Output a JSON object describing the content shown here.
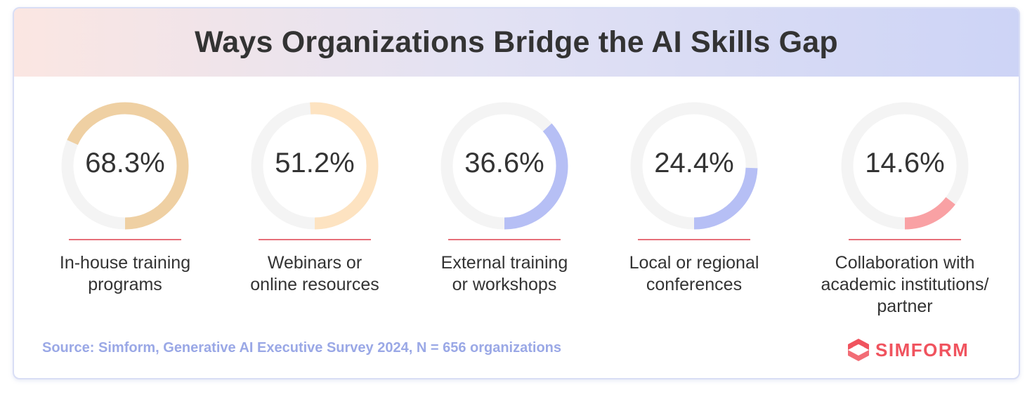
{
  "header": {
    "title": "Ways Organizations Bridge the AI Skills Gap"
  },
  "chart_data": {
    "type": "donut",
    "title": "Ways Organizations Bridge the AI Skills Gap",
    "items": [
      {
        "value": 68.3,
        "value_label": "68.3%",
        "label": "In-house training programs",
        "label_lines": [
          "In-house training",
          "programs"
        ],
        "color": "#efd0a3"
      },
      {
        "value": 51.2,
        "value_label": "51.2%",
        "label": "Webinars or online resources",
        "label_lines": [
          "Webinars or",
          "online resources"
        ],
        "color": "#fde3c1"
      },
      {
        "value": 36.6,
        "value_label": "36.6%",
        "label": "External training or workshops",
        "label_lines": [
          "External training",
          "or workshops"
        ],
        "color": "#b6bff5"
      },
      {
        "value": 24.4,
        "value_label": "24.4%",
        "label": "Local or regional conferences",
        "label_lines": [
          "Local or regional",
          "conferences"
        ],
        "color": "#b6bff5"
      },
      {
        "value": 14.6,
        "value_label": "14.6%",
        "label": "Collaboration with academic institutions/ partner",
        "label_lines": [
          "Collaboration with",
          "academic institutions/",
          "partner"
        ],
        "color": "#f9a1a4"
      }
    ]
  },
  "footer": {
    "source": "Source: Simform, Generative AI Executive Survey 2024, N = 656 organizations",
    "logo_text": "SIMFORM"
  },
  "colors": {
    "track": "#f4f4f4",
    "divider": "#e6707a",
    "source_text": "#9aa8e6",
    "brand": "#f0535e"
  }
}
